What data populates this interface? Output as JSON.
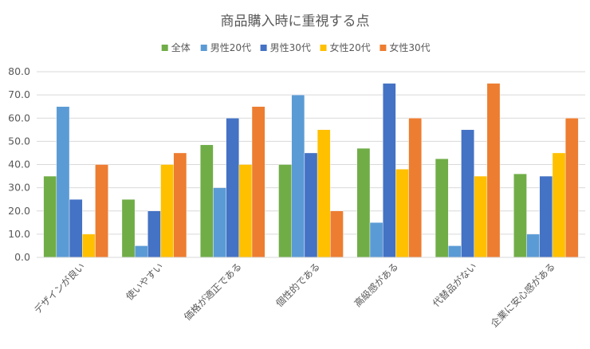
{
  "chart_data": {
    "type": "bar",
    "title": "商品購入時に重視する点",
    "xlabel": "",
    "ylabel": "",
    "ylim": [
      0,
      80
    ],
    "yticks": [
      0,
      10,
      20,
      30,
      40,
      50,
      60,
      70,
      80
    ],
    "ytick_labels": [
      "0.0",
      "10.0",
      "20.0",
      "30.0",
      "40.0",
      "50.0",
      "60.0",
      "70.0",
      "80.0"
    ],
    "grid": true,
    "legend_position": "top",
    "categories": [
      "デザインが良い",
      "使いやすい",
      "価格が適正である",
      "個性的である",
      "高級感がある",
      "代替品がない",
      "企業に安心感がある"
    ],
    "series": [
      {
        "name": "全体",
        "color": "#70AD47",
        "values": [
          35,
          25,
          48.5,
          40,
          47,
          42.5,
          36
        ]
      },
      {
        "name": "男性20代",
        "color": "#5B9BD5",
        "values": [
          65,
          5,
          30,
          70,
          15,
          5,
          10
        ]
      },
      {
        "name": "男性30代",
        "color": "#4472C4",
        "values": [
          25,
          20,
          60,
          45,
          75,
          55,
          35
        ]
      },
      {
        "name": "女性20代",
        "color": "#FFC000",
        "values": [
          10,
          40,
          40,
          55,
          38,
          35,
          45
        ]
      },
      {
        "name": "女性30代",
        "color": "#ED7D31",
        "values": [
          40,
          45,
          65,
          20,
          60,
          75,
          60
        ]
      }
    ]
  }
}
